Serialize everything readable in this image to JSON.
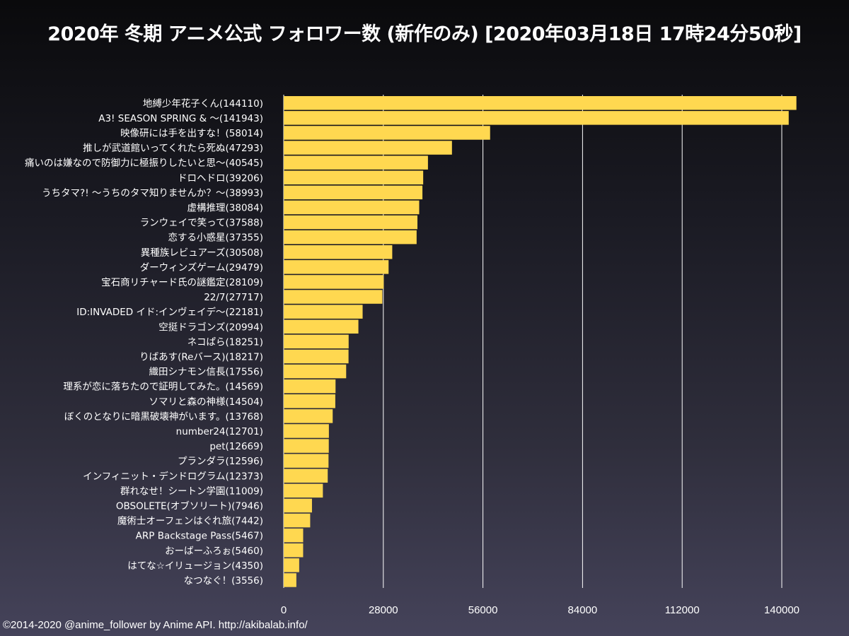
{
  "title": "2020年 冬期 アニメ公式 フォロワー数 (新作のみ) [2020年03月18日 17時24分50秒]",
  "footer": "©2014-2020 @anime_follower by Anime API. http://akibalab.info/",
  "colors": {
    "bar": "#ffd850",
    "grid": "#ffffff",
    "text": "#ffffff"
  },
  "chart_data": {
    "type": "bar",
    "orientation": "horizontal",
    "title": "2020年 冬期 アニメ公式 フォロワー数 (新作のみ) [2020年03月18日 17時24分50秒]",
    "xlabel": "",
    "ylabel": "",
    "xlim": [
      0,
      140000
    ],
    "xticks": [
      0,
      28000,
      56000,
      84000,
      112000,
      140000
    ],
    "grid": true,
    "labels": [
      "地縛少年花子くん(144110)",
      "A3! SEASON SPRING & ～(141943)",
      "映像研には手を出すな！(58014)",
      "推しが武道館いってくれたら死ぬ(47293)",
      "痛いのは嫌なので防御力に極振りしたいと思～(40545)",
      "ドロヘドロ(39206)",
      "うちタマ?! ～うちのタマ知りませんか？～(38993)",
      "虚構推理(38084)",
      "ランウェイで笑って(37588)",
      "恋する小惑星(37355)",
      "異種族レビュアーズ(30508)",
      "ダーウィンズゲーム(29479)",
      "宝石商リチャード氏の謎鑑定(28109)",
      "22/7(27717)",
      "ID:INVADED イド:インヴェイデ～(22181)",
      "空挺ドラゴンズ(20994)",
      "ネコぱら(18251)",
      "りばあす(Reバース)(18217)",
      "織田シナモン信長(17556)",
      "理系が恋に落ちたので証明してみた。(14569)",
      "ソマリと森の神様(14504)",
      "ぼくのとなりに暗黒破壊神がいます。(13768)",
      "number24(12701)",
      "pet(12669)",
      "プランダラ(12596)",
      "インフィニット・デンドログラム(12373)",
      "群れなせ！シートン学園(11009)",
      "OBSOLETE(オブソリート)(7946)",
      "魔術士オーフェンはぐれ旅(7442)",
      "ARP Backstage Pass(5467)",
      "おーばーふろぉ(5460)",
      "はてな☆イリュージョン(4350)",
      "なつなぐ！(3556)"
    ],
    "values": [
      144110,
      141943,
      58014,
      47293,
      40545,
      39206,
      38993,
      38084,
      37588,
      37355,
      30508,
      29479,
      28109,
      27717,
      22181,
      20994,
      18251,
      18217,
      17556,
      14569,
      14504,
      13768,
      12701,
      12669,
      12596,
      12373,
      11009,
      7946,
      7442,
      5467,
      5460,
      4350,
      3556
    ]
  }
}
